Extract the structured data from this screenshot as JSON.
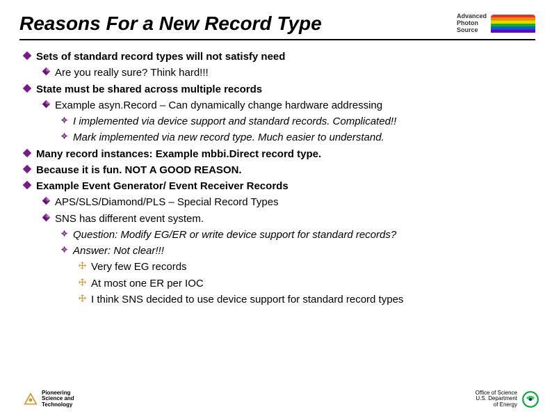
{
  "title": "Reasons For a New Record Type",
  "aps_label": "Advanced\nPhoton\nSource",
  "bullets": [
    {
      "level": 1,
      "text": "Sets of standard record types will not satisfy need"
    },
    {
      "level": 2,
      "text": "Are you really sure? Think hard!!!"
    },
    {
      "level": 1,
      "text": "State must be shared across multiple records"
    },
    {
      "level": 2,
      "text": "Example asyn.Record – Can dynamically change hardware addressing"
    },
    {
      "level": 3,
      "text": "I implemented via device support and standard records. Complicated!!"
    },
    {
      "level": 3,
      "text": "Mark implemented via new record type. Much easier to understand."
    },
    {
      "level": 1,
      "text": "Many record instances: Example mbbi.Direct record type."
    },
    {
      "level": 1,
      "text": "Because it is fun. NOT A GOOD REASON."
    },
    {
      "level": 1,
      "text": "Example Event Generator/ Event Receiver Records"
    },
    {
      "level": 2,
      "text": "APS/SLS/Diamond/PLS – Special Record Types"
    },
    {
      "level": 2,
      "text": "SNS has different event system."
    },
    {
      "level": 3,
      "text": "Question: Modify EG/ER or write device support for standard records?"
    },
    {
      "level": 3,
      "text": "Answer: Not clear!!!"
    },
    {
      "level": 4,
      "text": "Very few EG records"
    },
    {
      "level": 4,
      "text": "At most one ER per IOC"
    },
    {
      "level": 4,
      "text": "I think SNS decided to use device support for standard record types"
    }
  ],
  "footer_left": "Pioneering\nScience and\nTechnology",
  "footer_right": "Office of Science\nU.S. Department\nof Energy",
  "colors": {
    "diamond_l1": "#7a1a8a",
    "diamond_l2": "#7a1a8a",
    "cross_l3": "#7a1a8a",
    "cross_l4": "#cc9933",
    "argonne": "#cc9933"
  }
}
